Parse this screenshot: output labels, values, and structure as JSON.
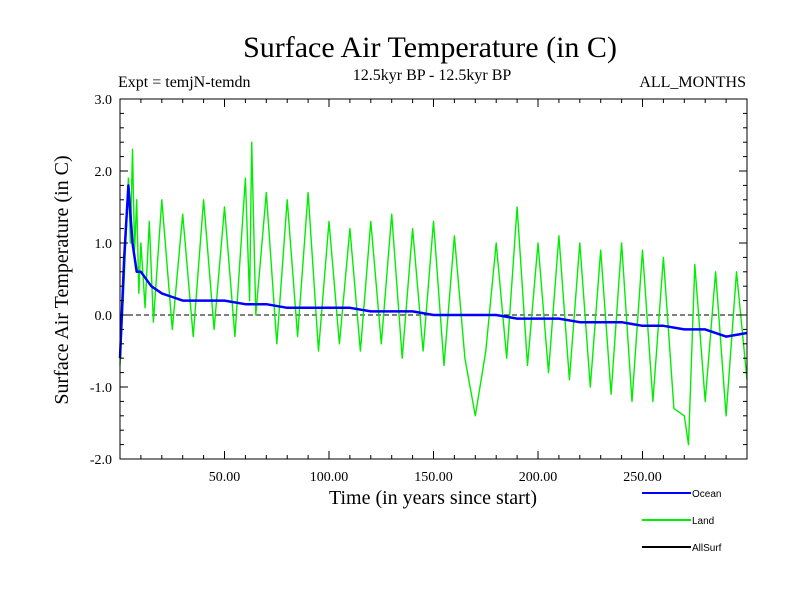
{
  "chart_data": {
    "type": "line",
    "title": "Surface Air Temperature (in C)",
    "subtitle": "12.5kyr BP - 12.5kyr BP",
    "experiment_label": "Expt = temjN-temdn",
    "months_label": "ALL_MONTHS",
    "xlabel": "Time (in years since start)",
    "ylabel": "Surface Air Temperature (in C)",
    "xlim": [
      0,
      300
    ],
    "ylim": [
      -2.0,
      3.0
    ],
    "x_ticks": [
      50,
      100,
      150,
      200,
      250
    ],
    "x_tick_labels": [
      "50.00",
      "100.00",
      "150.00",
      "200.00",
      "250.00"
    ],
    "y_ticks": [
      -2.0,
      -1.0,
      0.0,
      1.0,
      2.0,
      3.0
    ],
    "y_tick_labels": [
      "-2.0",
      "-1.0",
      "0.0",
      "1.0",
      "2.0",
      "3.0"
    ],
    "reference_line": 0.0,
    "grid": false,
    "legend_position": "bottom-right, below plot",
    "series": [
      {
        "name": "Land",
        "color": "#00ee00",
        "x": [
          0,
          2,
          4,
          5,
          6,
          7,
          8,
          9,
          10,
          12,
          14,
          16,
          20,
          25,
          30,
          35,
          40,
          45,
          50,
          55,
          60,
          62,
          63,
          65,
          70,
          75,
          80,
          85,
          90,
          95,
          100,
          105,
          110,
          115,
          120,
          125,
          130,
          135,
          140,
          145,
          150,
          155,
          160,
          165,
          170,
          175,
          180,
          185,
          190,
          195,
          200,
          205,
          210,
          215,
          220,
          225,
          230,
          235,
          240,
          245,
          250,
          255,
          260,
          265,
          270,
          272,
          275,
          280,
          285,
          290,
          295,
          300
        ],
        "values": [
          -0.7,
          0.5,
          1.9,
          1.0,
          2.3,
          0.9,
          1.6,
          0.3,
          1.0,
          0.1,
          1.3,
          -0.1,
          1.6,
          -0.2,
          1.4,
          -0.3,
          1.6,
          -0.2,
          1.5,
          -0.3,
          1.9,
          0.2,
          2.4,
          0.0,
          1.7,
          -0.4,
          1.6,
          -0.3,
          1.7,
          -0.5,
          1.3,
          -0.4,
          1.2,
          -0.5,
          1.3,
          -0.4,
          1.4,
          -0.6,
          1.2,
          -0.5,
          1.3,
          -0.7,
          1.1,
          -0.6,
          -1.4,
          -0.5,
          1.0,
          -0.6,
          1.5,
          -0.7,
          1.0,
          -0.8,
          1.1,
          -0.9,
          1.0,
          -1.0,
          0.9,
          -1.1,
          1.0,
          -1.2,
          0.9,
          -1.2,
          0.8,
          -1.3,
          -1.4,
          -1.8,
          0.7,
          -1.2,
          0.6,
          -1.4,
          0.6,
          -0.9
        ]
      },
      {
        "name": "Ocean",
        "color": "#0000ff",
        "x": [
          0,
          2,
          4,
          6,
          8,
          10,
          15,
          20,
          25,
          30,
          40,
          50,
          60,
          70,
          80,
          90,
          100,
          110,
          120,
          130,
          140,
          150,
          160,
          170,
          180,
          190,
          200,
          210,
          220,
          230,
          240,
          250,
          260,
          270,
          280,
          290,
          300
        ],
        "values": [
          -0.6,
          0.8,
          1.8,
          1.0,
          0.6,
          0.6,
          0.4,
          0.3,
          0.25,
          0.2,
          0.2,
          0.2,
          0.15,
          0.15,
          0.1,
          0.1,
          0.1,
          0.1,
          0.05,
          0.05,
          0.05,
          0.0,
          0.0,
          0.0,
          0.0,
          -0.05,
          -0.05,
          -0.05,
          -0.1,
          -0.1,
          -0.1,
          -0.15,
          -0.15,
          -0.2,
          -0.2,
          -0.3,
          -0.25
        ]
      },
      {
        "name": "AllSurf",
        "color": "#000000",
        "x": [],
        "values": []
      }
    ]
  }
}
